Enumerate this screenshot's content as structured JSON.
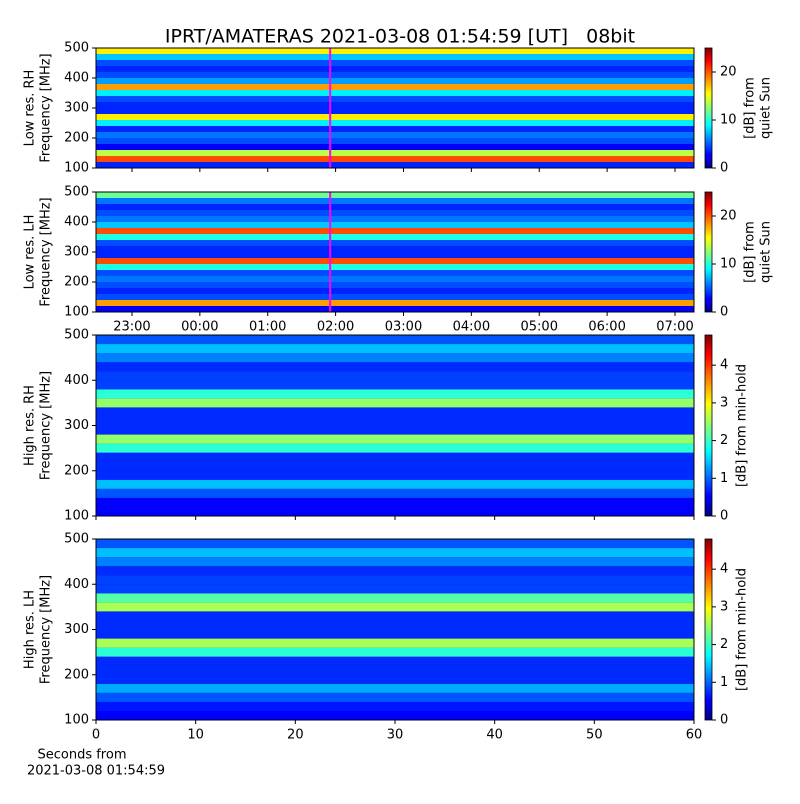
{
  "chart_data": [
    {
      "type": "heatmap",
      "title": "IPRT/AMATERAS 2021-03-08 01:54:59 [UT]   08bit",
      "ylabel": [
        "Low res. RH",
        "Frequency [MHz]"
      ],
      "xlim": [
        22.47,
        31.28
      ],
      "xticks": [
        {
          "value": 23,
          "label": "23:00"
        },
        {
          "value": 24,
          "label": "00:00"
        },
        {
          "value": 25,
          "label": "01:00"
        },
        {
          "value": 26,
          "label": "02:00"
        },
        {
          "value": 27,
          "label": "03:00"
        },
        {
          "value": 28,
          "label": "04:00"
        },
        {
          "value": 29,
          "label": "05:00"
        },
        {
          "value": 30,
          "label": "06:00"
        },
        {
          "value": 31,
          "label": "07:00"
        }
      ],
      "xtick_labels": false,
      "ylim": [
        100,
        500
      ],
      "yticks": [
        100,
        200,
        300,
        400,
        500
      ],
      "rows": [
        110,
        130,
        150,
        170,
        190,
        210,
        230,
        250,
        270,
        290,
        310,
        330,
        350,
        370,
        390,
        410,
        430,
        450,
        470,
        490
      ],
      "values": [
        4,
        20,
        14,
        3,
        5,
        6,
        4,
        9,
        16,
        4,
        4,
        5,
        9,
        18,
        7,
        5,
        4,
        5,
        8,
        16
      ],
      "vline": 25.92,
      "vline_color": "#ff00ff",
      "clim": [
        0,
        25
      ],
      "cticks": [
        0,
        10,
        20
      ],
      "clabel": [
        "[dB] from",
        "quiet Sun"
      ]
    },
    {
      "type": "heatmap",
      "ylabel": [
        "Low res. LH",
        "Frequency [MHz]"
      ],
      "xlim": [
        22.47,
        31.28
      ],
      "xticks": [
        {
          "value": 23,
          "label": "23:00"
        },
        {
          "value": 24,
          "label": "00:00"
        },
        {
          "value": 25,
          "label": "01:00"
        },
        {
          "value": 26,
          "label": "02:00"
        },
        {
          "value": 27,
          "label": "03:00"
        },
        {
          "value": 28,
          "label": "04:00"
        },
        {
          "value": 29,
          "label": "05:00"
        },
        {
          "value": 30,
          "label": "06:00"
        },
        {
          "value": 31,
          "label": "07:00"
        }
      ],
      "xtick_labels": true,
      "ylim": [
        100,
        500
      ],
      "yticks": [
        100,
        200,
        300,
        400,
        500
      ],
      "rows": [
        110,
        130,
        150,
        170,
        190,
        210,
        230,
        250,
        270,
        290,
        310,
        330,
        350,
        370,
        390,
        410,
        430,
        450,
        470,
        490
      ],
      "values": [
        3,
        18,
        5,
        4,
        5,
        6,
        5,
        10,
        20,
        4,
        4,
        5,
        10,
        20,
        8,
        6,
        5,
        4,
        6,
        12
      ],
      "vline": 25.92,
      "vline_color": "#ff00ff",
      "clim": [
        0,
        25
      ],
      "cticks": [
        0,
        10,
        20
      ],
      "clabel": [
        "[dB] from",
        "quiet Sun"
      ]
    },
    {
      "type": "heatmap",
      "ylabel": [
        "High res. RH",
        "Frequency [MHz]"
      ],
      "xlim": [
        0,
        60
      ],
      "xticks": [
        0,
        10,
        20,
        30,
        40,
        50,
        60
      ],
      "xtick_labels": false,
      "ylim": [
        100,
        500
      ],
      "yticks": [
        100,
        200,
        300,
        400,
        500
      ],
      "rows": [
        110,
        130,
        150,
        170,
        190,
        210,
        230,
        250,
        270,
        290,
        310,
        330,
        350,
        370,
        390,
        410,
        430,
        450,
        470,
        490
      ],
      "values": [
        0.6,
        0.6,
        1.0,
        1.5,
        0.8,
        0.8,
        0.8,
        2.0,
        2.5,
        0.8,
        0.8,
        0.8,
        2.5,
        2.0,
        0.9,
        0.9,
        0.8,
        1.2,
        1.5,
        1.0
      ],
      "clim": [
        0,
        4.8
      ],
      "cticks": [
        0,
        1,
        2,
        3,
        4
      ],
      "clabel": [
        "[dB] from min-hold"
      ]
    },
    {
      "type": "heatmap",
      "ylabel": [
        "High res. LH",
        "Frequency [MHz]"
      ],
      "xlabel": [
        "Seconds from",
        "2021-03-08 01:54:59"
      ],
      "xlim": [
        0,
        60
      ],
      "xticks": [
        0,
        10,
        20,
        30,
        40,
        50,
        60
      ],
      "xtick_labels": true,
      "ylim": [
        100,
        500
      ],
      "yticks": [
        100,
        200,
        300,
        400,
        500
      ],
      "rows": [
        110,
        130,
        150,
        170,
        190,
        210,
        230,
        250,
        270,
        290,
        310,
        330,
        350,
        370,
        390,
        410,
        430,
        450,
        470,
        490
      ],
      "values": [
        0.6,
        0.7,
        1.0,
        1.4,
        0.8,
        0.8,
        0.8,
        2.0,
        2.6,
        0.8,
        0.8,
        0.8,
        2.6,
        2.2,
        0.9,
        0.9,
        0.8,
        1.2,
        1.5,
        1.0
      ],
      "clim": [
        0,
        4.8
      ],
      "cticks": [
        0,
        1,
        2,
        3,
        4
      ],
      "clabel": [
        "[dB] from min-hold"
      ]
    }
  ]
}
